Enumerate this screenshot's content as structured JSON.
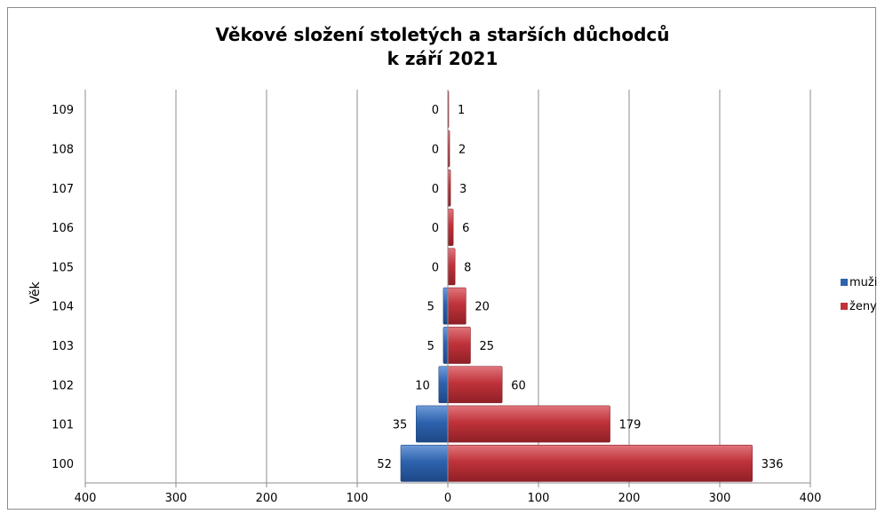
{
  "chart_data": {
    "type": "bar",
    "orientation": "horizontal",
    "title_line1": "Věkové složení stoletých a starších důchodců",
    "title_line2": "k září 2021",
    "ylabel": "Věk",
    "xlabel": "",
    "categories": [
      "100",
      "101",
      "102",
      "103",
      "104",
      "105",
      "106",
      "107",
      "108",
      "109"
    ],
    "series": [
      {
        "name": "muži",
        "values": [
          52,
          35,
          10,
          5,
          5,
          0,
          0,
          0,
          0,
          0
        ],
        "color": "#2e63ae",
        "direction": "left"
      },
      {
        "name": "ženy",
        "values": [
          336,
          179,
          60,
          25,
          20,
          8,
          6,
          3,
          2,
          1
        ],
        "color": "#c0333b",
        "direction": "right"
      }
    ],
    "xlim": [
      -400,
      400
    ],
    "xticks": [
      {
        "value": -400,
        "label": "400"
      },
      {
        "value": -300,
        "label": "300"
      },
      {
        "value": -200,
        "label": "200"
      },
      {
        "value": -100,
        "label": "100"
      },
      {
        "value": 0,
        "label": "0"
      },
      {
        "value": 100,
        "label": "100"
      },
      {
        "value": 200,
        "label": "200"
      },
      {
        "value": 300,
        "label": "300"
      },
      {
        "value": 400,
        "label": "400"
      }
    ],
    "grid": "vertical",
    "legend_position": "right"
  }
}
